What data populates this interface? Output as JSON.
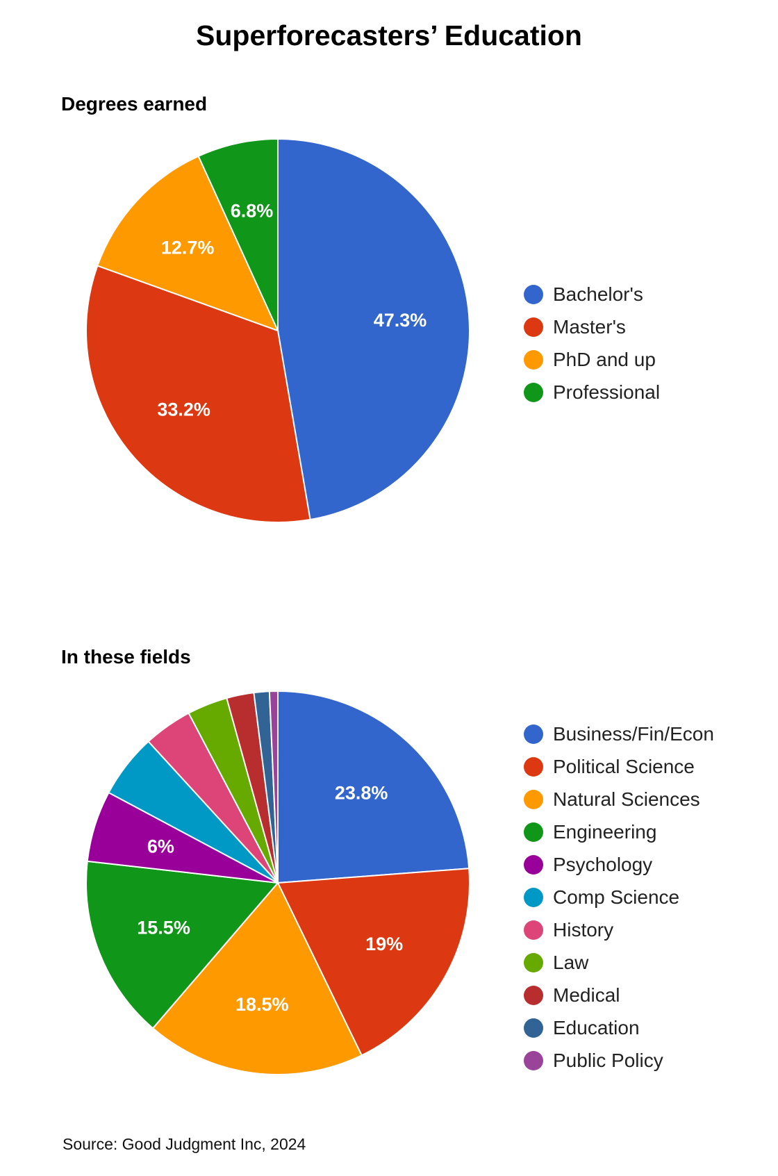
{
  "page": {
    "title": "Superforecasters’ Education",
    "source": "Source: Good Judgment Inc, 2024"
  },
  "chart_data": [
    {
      "type": "pie",
      "id": "degrees",
      "title": "Degrees earned",
      "labels": [
        "Bachelor's",
        "Master's",
        "PhD and up",
        "Professional"
      ],
      "values": [
        47.3,
        33.2,
        12.7,
        6.8
      ],
      "display_labels": [
        "47.3%",
        "33.2%",
        "12.7%",
        "6.8%"
      ],
      "colors": [
        "#3366cc",
        "#dc3912",
        "#ff9900",
        "#109618"
      ],
      "start_angle": "12 o'clock",
      "direction": "clockwise",
      "legend_position": "right"
    },
    {
      "type": "pie",
      "id": "fields",
      "title": "In these fields",
      "labels": [
        "Business/Fin/Econ",
        "Political Science",
        "Natural Sciences",
        "Engineering",
        "Psychology",
        "Comp Science",
        "History",
        "Law",
        "Medical",
        "Education",
        "Public Policy"
      ],
      "values": [
        23.8,
        19,
        18.5,
        15.5,
        6,
        5.4,
        4.1,
        3.4,
        2.3,
        1.3,
        0.7
      ],
      "display_labels": [
        "23.8%",
        "19%",
        "18.5%",
        "15.5%",
        "6%",
        "",
        "",
        "",
        "",
        "",
        ""
      ],
      "colors": [
        "#3366cc",
        "#dc3912",
        "#ff9900",
        "#109618",
        "#990099",
        "#0099c6",
        "#dd4477",
        "#66aa00",
        "#b82e2e",
        "#316395",
        "#994499"
      ],
      "start_angle": "12 o'clock",
      "direction": "clockwise",
      "legend_position": "right"
    }
  ]
}
